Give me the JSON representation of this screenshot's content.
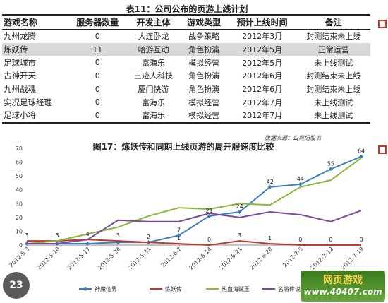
{
  "table": {
    "title": "表11：公司公布的页游上线计划",
    "headers": [
      "游戏名称",
      "服务器数量",
      "开发主体",
      "游戏类型",
      "预计上线时间",
      "备注"
    ],
    "rows": [
      [
        "九州龙腾",
        "0",
        "大连卧龙",
        "战争策略",
        "2012年3月",
        "封测结束未上线"
      ],
      [
        "炼妖传",
        "11",
        "哈游互动",
        "角色扮演",
        "2012年5月",
        "正常运营"
      ],
      [
        "足球城市",
        "0",
        "富海乐",
        "模拟经营",
        "2012年5月",
        "未上线测试"
      ],
      [
        "古神开天",
        "0",
        "三迹人科技",
        "角色扮演",
        "2012年6月",
        "封测结束未上线"
      ],
      [
        "九州战魂",
        "0",
        "厦门快游",
        "角色扮演",
        "2012年6月",
        "封测结束未上线"
      ],
      [
        "实况足球经理",
        "0",
        "富海乐",
        "模拟经营",
        "2012年7月",
        "未上线测试"
      ],
      [
        "足球小将",
        "0",
        "富海乐",
        "模拟经营",
        "2012年7月",
        "未上线测试"
      ]
    ],
    "highlight_row": 1
  },
  "source_note": "数据来源：公司招股书",
  "chart_data": {
    "type": "line",
    "title": "图17：炼妖传和同期上线页游的周开服速度比较",
    "categories": [
      "2012-5-3",
      "2012-5-10",
      "2012-5-17",
      "2012-5-24",
      "2012-5-31",
      "2012-6-7",
      "2012-6-14",
      "2012-6-21",
      "2012-6-28",
      "2012-7-5",
      "2012-7-12",
      "2012-7-19"
    ],
    "ylim": [
      0,
      70
    ],
    "yticks": [
      0,
      10,
      20,
      30,
      40,
      50,
      60,
      70
    ],
    "legend_position": "bottom",
    "series": [
      {
        "name": "神魔仙界",
        "color": "#3a7dbf",
        "marker": "diamond",
        "values": [
          1,
          1,
          1,
          2,
          2,
          7,
          21,
          24,
          42,
          44,
          55,
          64
        ]
      },
      {
        "name": "炼妖传",
        "color": "#c0392b",
        "marker": "none",
        "values": [
          3,
          3,
          4,
          3,
          2,
          1,
          0,
          3,
          1,
          0,
          0,
          0
        ]
      },
      {
        "name": "热血海贼王",
        "color": "#8ab83d",
        "marker": "none",
        "values": [
          1,
          3,
          8,
          13,
          21,
          27,
          26,
          30,
          29,
          42,
          47,
          63
        ]
      },
      {
        "name": "名将传说",
        "color": "#7a4a9e",
        "marker": "none",
        "values": [
          1,
          1,
          4,
          18,
          17,
          17,
          23,
          20,
          24,
          22,
          17,
          25
        ]
      }
    ],
    "data_labels": [
      {
        "series": 0,
        "index": 5,
        "text": "7"
      },
      {
        "series": 0,
        "index": 6,
        "text": "21"
      },
      {
        "series": 0,
        "index": 7,
        "text": "24"
      },
      {
        "series": 0,
        "index": 8,
        "text": "42"
      },
      {
        "series": 0,
        "index": 9,
        "text": "44"
      },
      {
        "series": 0,
        "index": 10,
        "text": "55"
      },
      {
        "series": 0,
        "index": 11,
        "text": "64"
      },
      {
        "series": 1,
        "index": 0,
        "text": "3"
      },
      {
        "series": 1,
        "index": 1,
        "text": "3"
      },
      {
        "series": 1,
        "index": 2,
        "text": "4"
      },
      {
        "series": 1,
        "index": 3,
        "text": "3"
      },
      {
        "series": 1,
        "index": 4,
        "text": "2"
      },
      {
        "series": 1,
        "index": 5,
        "text": "1"
      },
      {
        "series": 1,
        "index": 6,
        "text": "0"
      },
      {
        "series": 1,
        "index": 7,
        "text": "3"
      },
      {
        "series": 1,
        "index": 8,
        "text": "1"
      },
      {
        "series": 1,
        "index": 9,
        "text": "0"
      },
      {
        "series": 1,
        "index": 10,
        "text": "0"
      },
      {
        "series": 1,
        "index": 11,
        "text": "0"
      }
    ]
  },
  "page_number": "23",
  "logo": {
    "line1": "网页游戏",
    "line2": "www.40407.com"
  },
  "colors": {
    "accent_square": "#c0392b"
  }
}
